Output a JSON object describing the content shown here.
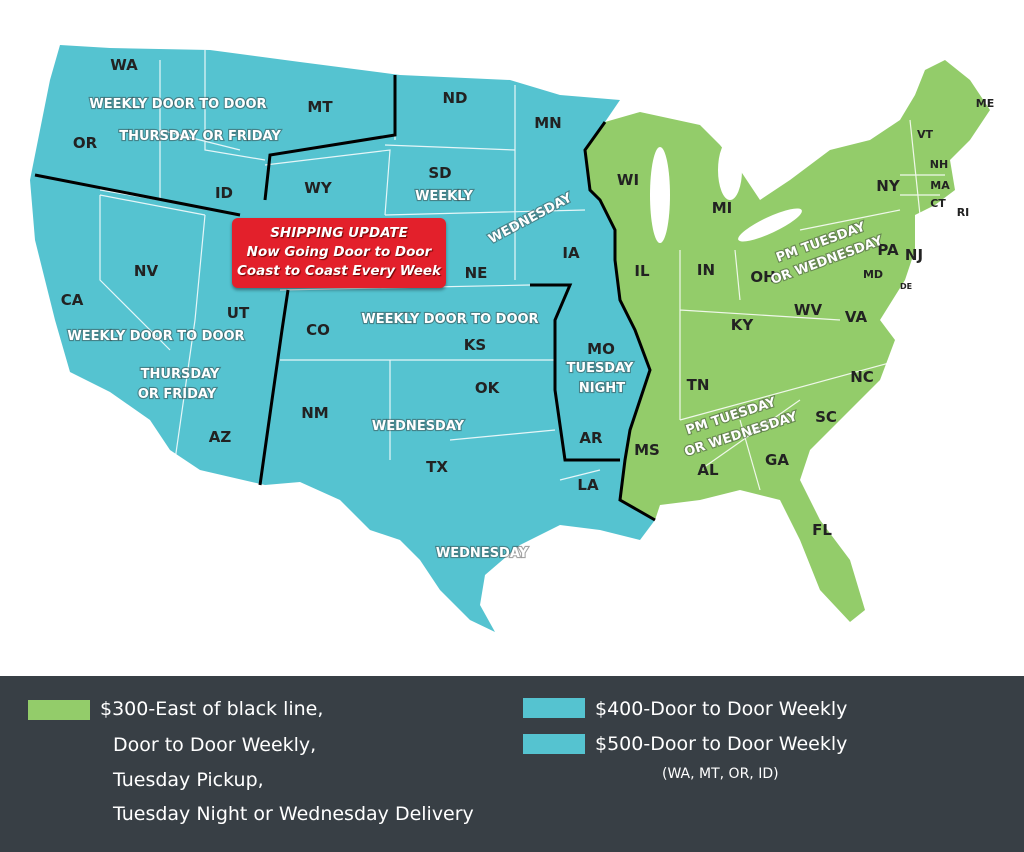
{
  "colors": {
    "east": "#93cc6a",
    "west": "#55c3d0",
    "legend_bg": "#383f45",
    "badge": "#e3202b",
    "divider_line": "#000000"
  },
  "badge": {
    "line1": "SHIPPING UPDATE",
    "line2": "Now Going Door to Door",
    "line3": "Coast to Coast Every Week"
  },
  "states": [
    "WA",
    "OR",
    "MT",
    "ID",
    "ND",
    "MN",
    "SD",
    "WY",
    "NV",
    "CA",
    "UT",
    "NE",
    "IA",
    "CO",
    "KS",
    "MO",
    "AZ",
    "NM",
    "OK",
    "AR",
    "TX",
    "LA",
    "WI",
    "MI",
    "IL",
    "IN",
    "OH",
    "KY",
    "WV",
    "VA",
    "TN",
    "NC",
    "SC",
    "MS",
    "AL",
    "GA",
    "FL",
    "PA",
    "NY",
    "VT",
    "NH",
    "MA",
    "CT",
    "RI",
    "NJ",
    "MD",
    "DE",
    "ME"
  ],
  "notes": {
    "pacific_nw1": "WEEKLY DOOR TO DOOR",
    "pacific_nw2": "THURSDAY OR FRIDAY",
    "sd_weekly": "WEEKLY",
    "mn_wed": "WEDNESDAY",
    "west1": "WEEKLY DOOR TO DOOR",
    "west2": "THURSDAY",
    "west3": "OR FRIDAY",
    "central": "WEEKLY DOOR TO DOOR",
    "mo1": "TUESDAY",
    "mo2": "NIGHT",
    "nm_wed": "WEDNESDAY",
    "tx_wed": "WEDNESDAY",
    "ne1": "PM TUESDAY",
    "ne2": "OR WEDNESDAY",
    "se1": "PM  TUESDAY",
    "se2": "OR WEDNESDAY"
  },
  "legend": {
    "east_line1": "$300-East of black line,",
    "east_line2": "Door to Door Weekly,",
    "east_line3": "Tuesday Pickup,",
    "east_line4": "Tuesday Night or Wednesday Delivery",
    "tier400": "$400-Door to Door Weekly",
    "tier500": "$500-Door to Door Weekly",
    "tier500_note": "(WA, MT, OR, ID)"
  }
}
